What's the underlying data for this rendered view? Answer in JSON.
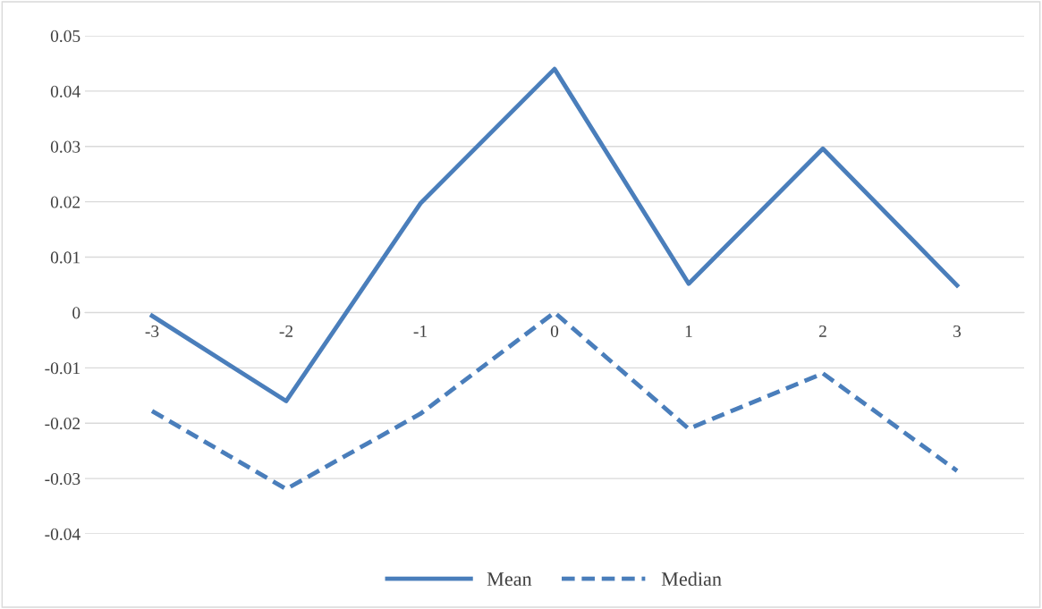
{
  "chart_data": {
    "type": "line",
    "categories": [
      "-3",
      "-2",
      "-1",
      "0",
      "1",
      "2",
      "3"
    ],
    "series": [
      {
        "name": "Mean",
        "color": "#4a7ebb",
        "line_style": "solid",
        "values": [
          -0.0006,
          -0.016,
          0.0197,
          0.044,
          0.0052,
          0.0296,
          0.0049
        ]
      },
      {
        "name": "Median",
        "color": "#4a7ebb",
        "line_style": "dashed",
        "values": [
          -0.0178,
          -0.0319,
          -0.0183,
          0.0,
          -0.021,
          -0.011,
          -0.0286
        ]
      }
    ],
    "ylim": [
      -0.04,
      0.05
    ],
    "yticks": [
      {
        "value": -0.04,
        "label": "-0.04"
      },
      {
        "value": -0.03,
        "label": "-0.03"
      },
      {
        "value": -0.02,
        "label": "-0.02"
      },
      {
        "value": -0.01,
        "label": "-0.01"
      },
      0,
      0.01,
      0.02,
      0.03,
      0.04,
      0.05
    ],
    "grid": "y",
    "legend": "bottom",
    "marker": "none"
  }
}
